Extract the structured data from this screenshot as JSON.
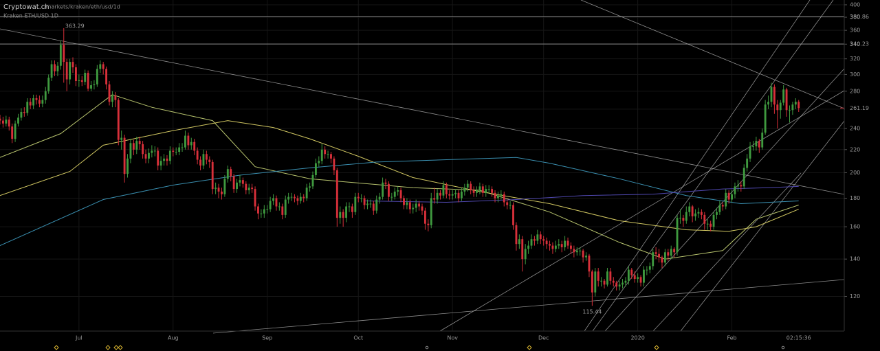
{
  "header": {
    "site": "Cryptowat.ch",
    "path": "/markets/kraken/eth/usd/1d",
    "market": "Kraken ETH/USD 1D"
  },
  "chart_data": {
    "type": "candlestick",
    "log_scale": true,
    "grid": true,
    "up_color": "#3f9a3f",
    "down_color": "#d8303a",
    "ylim": [
      104,
      408
    ],
    "yticks": [
      120,
      140,
      160,
      180,
      200,
      220,
      240,
      260,
      280,
      300,
      320,
      340,
      360,
      380,
      400
    ],
    "xlim": [
      0,
      278
    ],
    "xticks": [
      {
        "value": 26,
        "label": "Jul"
      },
      {
        "value": 57,
        "label": "Aug"
      },
      {
        "value": 88,
        "label": "Sep"
      },
      {
        "value": 118,
        "label": "Oct"
      },
      {
        "value": 149,
        "label": "Nov"
      },
      {
        "value": 179,
        "label": "Dec"
      },
      {
        "value": 210,
        "label": "2020"
      },
      {
        "value": 241,
        "label": "Feb"
      }
    ],
    "countdown": "02:15:36",
    "levels": [
      380.86,
      340.23
    ],
    "open": [
      250,
      248,
      245,
      249,
      242,
      230,
      245,
      251,
      257,
      256,
      268,
      264,
      272,
      270,
      266,
      270,
      280,
      296,
      313,
      304,
      311,
      339,
      316,
      294,
      316,
      309,
      292,
      293,
      291,
      302,
      283,
      287,
      288,
      307,
      313,
      307,
      288,
      268,
      275,
      270,
      229,
      231,
      199,
      212,
      226,
      220,
      228,
      225,
      216,
      212,
      217,
      219,
      219,
      206,
      210,
      212,
      210,
      219,
      218,
      218,
      222,
      222,
      233,
      224,
      227,
      219,
      211,
      206,
      216,
      211,
      209,
      187,
      188,
      185,
      183,
      195,
      203,
      197,
      187,
      192,
      194,
      191,
      186,
      188,
      187,
      174,
      169,
      169,
      172,
      172,
      178,
      180,
      174,
      174,
      168,
      179,
      181,
      181,
      180,
      178,
      181,
      180,
      188,
      189,
      198,
      208,
      210,
      220,
      216,
      216,
      212,
      202,
      166,
      170,
      166,
      174,
      174,
      170,
      181,
      180,
      180,
      175,
      176,
      176,
      171,
      179,
      181,
      192,
      191,
      181,
      181,
      185,
      186,
      180,
      175,
      177,
      172,
      173,
      176,
      174,
      171,
      162,
      161,
      180,
      179,
      184,
      182,
      190,
      183,
      182,
      183,
      184,
      180,
      185,
      188,
      191,
      186,
      184,
      186,
      189,
      184,
      187,
      187,
      184,
      180,
      182,
      183,
      177,
      175,
      175,
      161,
      149,
      152,
      140,
      146,
      148,
      152,
      151,
      155,
      152,
      151,
      149,
      148,
      146,
      148,
      149,
      147,
      151,
      148,
      146,
      144,
      145,
      145,
      141,
      142,
      133,
      122,
      133,
      128,
      128,
      126,
      133,
      128,
      127,
      125,
      126,
      127,
      128,
      134,
      131,
      129,
      130,
      127,
      134,
      134,
      136,
      144,
      143,
      141,
      138,
      144,
      142,
      146,
      144,
      166,
      166,
      164,
      170,
      174,
      167,
      169,
      170,
      168,
      162,
      162,
      160,
      168,
      170,
      175,
      174,
      184,
      179,
      183,
      189,
      190,
      189,
      204,
      212,
      223,
      223,
      228,
      222,
      236,
      265,
      268,
      285,
      265,
      259,
      267,
      282,
      259,
      259,
      265,
      268
    ],
    "high": [
      254,
      252,
      253,
      252,
      245,
      248,
      255,
      261,
      262,
      272,
      272,
      276,
      276,
      275,
      275,
      285,
      300,
      318,
      318,
      316,
      345,
      363.29,
      320,
      320,
      322,
      313,
      300,
      298,
      306,
      305,
      292,
      293,
      312,
      318,
      316,
      310,
      292,
      280,
      279,
      272,
      238,
      234,
      216,
      230,
      229,
      232,
      232,
      228,
      220,
      221,
      224,
      223,
      222,
      214,
      216,
      215,
      223,
      222,
      222,
      226,
      226,
      238,
      236,
      231,
      230,
      222,
      214,
      220,
      219,
      214,
      211,
      192,
      191,
      188,
      198,
      206,
      205,
      199,
      195,
      198,
      196,
      193,
      191,
      191,
      189,
      176,
      172,
      175,
      175,
      181,
      183,
      182,
      177,
      176,
      182,
      184,
      184,
      183,
      182,
      184,
      183,
      191,
      192,
      201,
      212,
      214,
      225,
      223,
      219,
      218,
      214,
      204,
      174,
      172,
      177,
      177,
      176,
      184,
      184,
      183,
      182,
      179,
      179,
      178,
      182,
      184,
      196,
      195,
      193,
      184,
      188,
      189,
      188,
      182,
      180,
      179,
      176,
      179,
      178,
      176,
      173,
      165,
      184,
      188,
      187,
      186,
      193,
      192,
      186,
      186,
      187,
      186,
      188,
      191,
      194,
      193,
      189,
      189,
      192,
      191,
      190,
      190,
      189,
      186,
      185,
      186,
      185,
      179,
      178,
      177,
      163,
      155,
      154,
      149,
      151,
      155,
      154,
      158,
      157,
      154,
      153,
      151,
      150,
      151,
      152,
      151,
      154,
      153,
      150,
      148,
      147,
      147,
      146,
      144,
      143,
      134,
      135,
      135,
      130,
      129,
      135,
      135,
      130,
      128,
      128,
      129,
      130,
      136,
      135,
      133,
      132,
      131,
      136,
      136,
      138,
      146,
      147,
      146,
      142,
      146,
      146,
      148,
      147,
      168,
      172,
      168,
      174,
      177,
      175,
      172,
      173,
      172,
      170,
      165,
      164,
      170,
      173,
      178,
      177,
      187,
      186,
      186,
      192,
      194,
      193,
      207,
      216,
      227,
      228,
      232,
      230,
      240,
      270,
      275,
      290,
      288,
      270,
      270,
      287,
      284,
      264,
      268,
      272,
      270
    ],
    "low": [
      244,
      241,
      242,
      238,
      226,
      227,
      242,
      248,
      252,
      253,
      260,
      260,
      265,
      262,
      262,
      266,
      277,
      292,
      298,
      298,
      306,
      290,
      280,
      288,
      302,
      286,
      285,
      286,
      287,
      280,
      280,
      282,
      285,
      302,
      300,
      282,
      264,
      262,
      262,
      224,
      220,
      192,
      196,
      208,
      215,
      216,
      220,
      212,
      208,
      208,
      213,
      214,
      202,
      202,
      206,
      206,
      207,
      214,
      215,
      215,
      218,
      220,
      220,
      220,
      215,
      207,
      202,
      203,
      207,
      204,
      183,
      183,
      180,
      179,
      181,
      192,
      193,
      184,
      184,
      189,
      188,
      183,
      183,
      184,
      171,
      165,
      166,
      166,
      169,
      170,
      175,
      171,
      171,
      165,
      166,
      176,
      178,
      177,
      175,
      176,
      177,
      178,
      185,
      187,
      196,
      205,
      207,
      212,
      212,
      208,
      198,
      160,
      162,
      160,
      163,
      170,
      166,
      168,
      177,
      177,
      172,
      172,
      173,
      168,
      169,
      176,
      179,
      187,
      178,
      178,
      179,
      182,
      177,
      172,
      172,
      169,
      169,
      170,
      171,
      168,
      158,
      157,
      159,
      176,
      176,
      179,
      180,
      180,
      179,
      179,
      180,
      177,
      178,
      182,
      185,
      183,
      181,
      181,
      183,
      181,
      181,
      184,
      181,
      177,
      177,
      179,
      174,
      172,
      172,
      158,
      145,
      146,
      133,
      137,
      143,
      146,
      148,
      149,
      149,
      148,
      146,
      145,
      143,
      144,
      146,
      144,
      145,
      146,
      143,
      141,
      142,
      142,
      138,
      139,
      130,
      115.44,
      120,
      125,
      125,
      124,
      125,
      126,
      125,
      123,
      123,
      124,
      125,
      126,
      129,
      127,
      127,
      125,
      125,
      131,
      132,
      134,
      140,
      138,
      135,
      136,
      139,
      140,
      141,
      142,
      162,
      160,
      162,
      167,
      163,
      164,
      166,
      165,
      158,
      158,
      157,
      158,
      165,
      168,
      171,
      172,
      176,
      177,
      180,
      185,
      185,
      187,
      201,
      209,
      219,
      219,
      217,
      220,
      234,
      260,
      262,
      255,
      240,
      250,
      264,
      252,
      246,
      254,
      260,
      257
    ],
    "close": [
      248,
      245,
      249,
      242,
      230,
      245,
      251,
      257,
      256,
      268,
      264,
      272,
      270,
      266,
      270,
      280,
      296,
      313,
      304,
      311,
      339,
      316,
      294,
      316,
      309,
      292,
      293,
      291,
      302,
      283,
      287,
      288,
      307,
      313,
      307,
      288,
      268,
      275,
      270,
      229,
      231,
      199,
      212,
      226,
      220,
      228,
      225,
      216,
      212,
      217,
      219,
      219,
      206,
      210,
      212,
      210,
      219,
      218,
      218,
      222,
      222,
      233,
      224,
      227,
      219,
      211,
      206,
      216,
      211,
      209,
      187,
      188,
      185,
      183,
      195,
      203,
      197,
      187,
      192,
      194,
      191,
      186,
      188,
      187,
      174,
      169,
      169,
      172,
      172,
      178,
      180,
      174,
      174,
      168,
      179,
      181,
      181,
      180,
      178,
      181,
      180,
      188,
      189,
      198,
      208,
      210,
      220,
      216,
      216,
      212,
      202,
      166,
      170,
      166,
      174,
      174,
      170,
      181,
      180,
      180,
      175,
      176,
      176,
      171,
      179,
      181,
      192,
      191,
      181,
      181,
      185,
      186,
      180,
      175,
      177,
      172,
      173,
      176,
      174,
      171,
      162,
      161,
      180,
      179,
      184,
      182,
      190,
      183,
      182,
      183,
      184,
      180,
      185,
      188,
      191,
      186,
      184,
      186,
      189,
      184,
      187,
      187,
      184,
      180,
      182,
      183,
      177,
      175,
      175,
      161,
      149,
      152,
      140,
      146,
      148,
      152,
      151,
      155,
      152,
      151,
      149,
      148,
      146,
      148,
      149,
      147,
      151,
      148,
      146,
      144,
      145,
      145,
      141,
      142,
      133,
      122,
      133,
      128,
      128,
      126,
      133,
      128,
      127,
      125,
      126,
      127,
      128,
      134,
      131,
      129,
      130,
      127,
      134,
      134,
      136,
      144,
      143,
      141,
      138,
      144,
      142,
      146,
      144,
      166,
      166,
      164,
      170,
      174,
      167,
      169,
      170,
      168,
      162,
      162,
      160,
      168,
      170,
      175,
      174,
      184,
      179,
      183,
      189,
      190,
      189,
      204,
      212,
      223,
      223,
      228,
      222,
      236,
      265,
      268,
      285,
      265,
      259,
      267,
      282,
      259,
      259,
      265,
      268,
      261.19
    ],
    "overlays": [
      {
        "type": "line",
        "color": "#b8c46e",
        "x": [
          0,
          20,
          37,
          50,
          70,
          84,
          102,
          136,
          158,
          181,
          204,
          219,
          238,
          249,
          263
        ],
        "values": [
          213,
          235,
          276,
          262,
          248,
          205,
          195,
          188,
          186,
          170,
          150,
          140,
          145,
          165,
          175
        ]
      },
      {
        "type": "line",
        "color": "#d2c862",
        "x": [
          0,
          23,
          34,
          57,
          75,
          90,
          102,
          118,
          136,
          158,
          181,
          204,
          226,
          240,
          249,
          263
        ],
        "values": [
          182,
          201,
          224,
          238,
          248,
          241,
          230,
          214,
          196,
          185,
          176,
          164,
          158,
          157,
          160,
          172
        ]
      },
      {
        "type": "line",
        "color": "#3a8fb0",
        "x": [
          0,
          34,
          57,
          79,
          102,
          124,
          147,
          170,
          181,
          204,
          226,
          244,
          263
        ],
        "values": [
          148,
          179,
          190,
          198,
          204,
          209,
          211,
          213,
          208,
          195,
          182,
          176,
          178
        ]
      },
      {
        "type": "line",
        "color": "#5048b0",
        "x": [
          120,
          147,
          170,
          192,
          215,
          238,
          253,
          263
        ],
        "values": [
          178,
          177,
          179,
          182,
          183,
          187,
          188,
          189
        ]
      }
    ]
  }
}
